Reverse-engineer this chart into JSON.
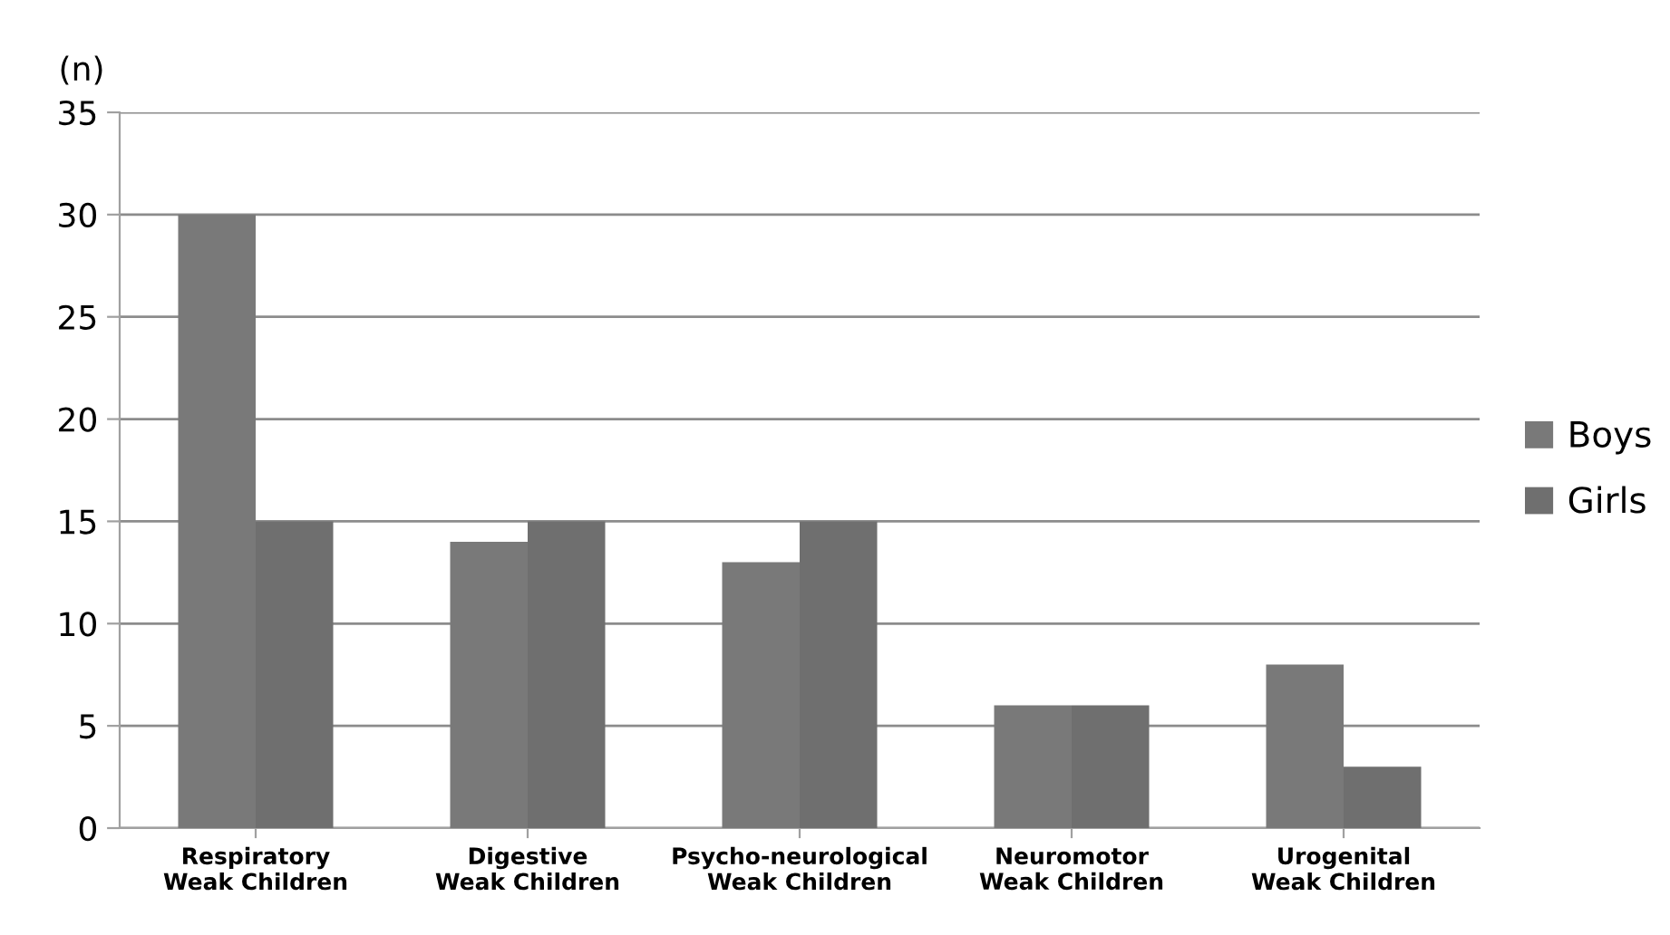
{
  "chart_data": {
    "type": "bar",
    "ylabel": "(n)",
    "categories": [
      "Respiratory\nWeak Children",
      "Digestive\nWeak Children",
      "Psycho-neurological\nWeak Children",
      "Neuromotor\nWeak Children",
      "Urogenital\nWeak Children"
    ],
    "series": [
      {
        "name": "Boys",
        "color": "#797979",
        "values": [
          30,
          14,
          13,
          6,
          8
        ]
      },
      {
        "name": "Girls",
        "color": "#6f6f6f",
        "values": [
          15,
          15,
          15,
          6,
          3
        ]
      }
    ],
    "ylim": [
      0,
      35
    ],
    "yticks": [
      0,
      5,
      10,
      15,
      20,
      25,
      30,
      35
    ],
    "grid": "y",
    "legend": "right"
  }
}
